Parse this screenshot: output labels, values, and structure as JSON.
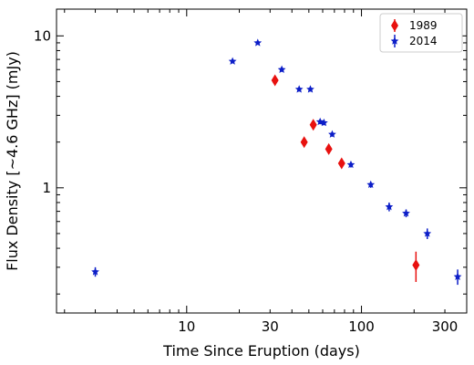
{
  "chart_data": {
    "type": "scatter",
    "xlabel": "Time Since Eruption (days)",
    "ylabel": "Flux Density [~4.6 GHz] (mJy)",
    "xscale": "log",
    "yscale": "log",
    "xlim": [
      1.8,
      400
    ],
    "ylim": [
      0.15,
      15
    ],
    "x_ticks": [
      10,
      30,
      100,
      300
    ],
    "x_tick_labels": [
      "10",
      "30",
      "100",
      "300"
    ],
    "y_ticks": [
      1,
      10
    ],
    "y_tick_labels": [
      "1",
      "10"
    ],
    "grid": false,
    "legend_position": "top-right",
    "series": [
      {
        "name": "1989",
        "marker": "diamond",
        "color": "#e8110f",
        "points": [
          {
            "x": 32,
            "y": 5.1,
            "err": 0.2
          },
          {
            "x": 47,
            "y": 2.0,
            "err": 0.1
          },
          {
            "x": 53,
            "y": 2.6,
            "err": 0.12
          },
          {
            "x": 65,
            "y": 1.8,
            "err": 0.1
          },
          {
            "x": 77,
            "y": 1.45,
            "err": 0.08
          },
          {
            "x": 205,
            "y": 0.31,
            "err": 0.07
          }
        ]
      },
      {
        "name": "2014",
        "marker": "star",
        "color": "#0c1ec8",
        "points": [
          {
            "x": 3.0,
            "y": 0.28,
            "err": 0.02
          },
          {
            "x": 18.3,
            "y": 6.8,
            "err": 0.2
          },
          {
            "x": 25.5,
            "y": 9.0,
            "err": 0.25
          },
          {
            "x": 35,
            "y": 6.0,
            "err": 0.2
          },
          {
            "x": 44,
            "y": 4.45,
            "err": 0.15
          },
          {
            "x": 51,
            "y": 4.45,
            "err": 0.15
          },
          {
            "x": 58,
            "y": 2.72,
            "err": 0.1
          },
          {
            "x": 61,
            "y": 2.68,
            "err": 0.1
          },
          {
            "x": 68,
            "y": 2.25,
            "err": 0.08
          },
          {
            "x": 87,
            "y": 1.42,
            "err": 0.06
          },
          {
            "x": 113,
            "y": 1.05,
            "err": 0.05
          },
          {
            "x": 144,
            "y": 0.75,
            "err": 0.05
          },
          {
            "x": 180,
            "y": 0.68,
            "err": 0.04
          },
          {
            "x": 238,
            "y": 0.5,
            "err": 0.04
          },
          {
            "x": 355,
            "y": 0.26,
            "err": 0.03
          }
        ]
      }
    ]
  }
}
